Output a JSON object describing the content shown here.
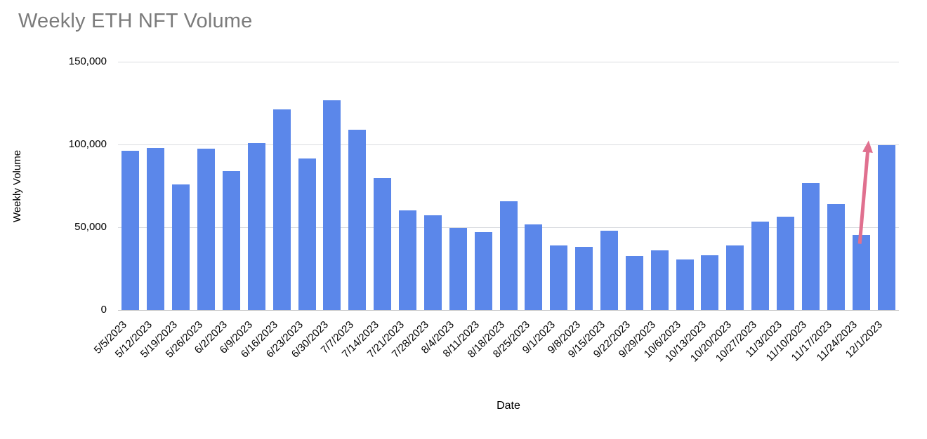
{
  "chart_data": {
    "type": "bar",
    "title": "Weekly ETH NFT Volume",
    "xlabel": "Date",
    "ylabel": "Weekly Volume",
    "ylim": [
      0,
      150000
    ],
    "yticks": [
      0,
      50000,
      100000,
      150000
    ],
    "ytick_labels": [
      "0",
      "50,000",
      "100,000",
      "150,000"
    ],
    "grid": true,
    "legend": "none",
    "categories": [
      "5/5/2023",
      "5/12/2023",
      "5/19/2023",
      "5/26/2023",
      "6/2/2023",
      "6/9/2023",
      "6/16/2023",
      "6/23/2023",
      "6/30/2023",
      "7/7/2023",
      "7/14/2023",
      "7/21/2023",
      "7/28/2023",
      "8/4/2023",
      "8/11/2023",
      "8/18/2023",
      "8/25/2023",
      "9/1/2023",
      "9/8/2023",
      "9/15/2023",
      "9/22/2023",
      "9/29/2023",
      "10/6/2023",
      "10/13/2023",
      "10/20/2023",
      "10/27/2023",
      "11/3/2023",
      "11/10/2023",
      "11/17/2023",
      "11/24/2023",
      "12/1/2023"
    ],
    "values": [
      96000,
      98000,
      76000,
      97500,
      84000,
      101000,
      121000,
      91500,
      126500,
      109000,
      79500,
      60000,
      57000,
      49500,
      47000,
      65500,
      51500,
      39000,
      38000,
      48000,
      32500,
      36000,
      30500,
      33000,
      39000,
      53500,
      56500,
      76500,
      64000,
      45500,
      99500
    ],
    "annotation": {
      "type": "arrow",
      "description": "pink arrow pointing upward from the 11/24/2023 bar toward the 12/1/2023 spike",
      "from": {
        "category": "11/24/2023",
        "value": 40000
      },
      "to": {
        "category": "11/24/2023",
        "value": 99000
      }
    }
  },
  "colors": {
    "bar": "#5b87ea",
    "arrow": "#e0708f",
    "title_text": "#7b7b7b",
    "axis_text": "#000000",
    "gridline": "#dadce0"
  }
}
